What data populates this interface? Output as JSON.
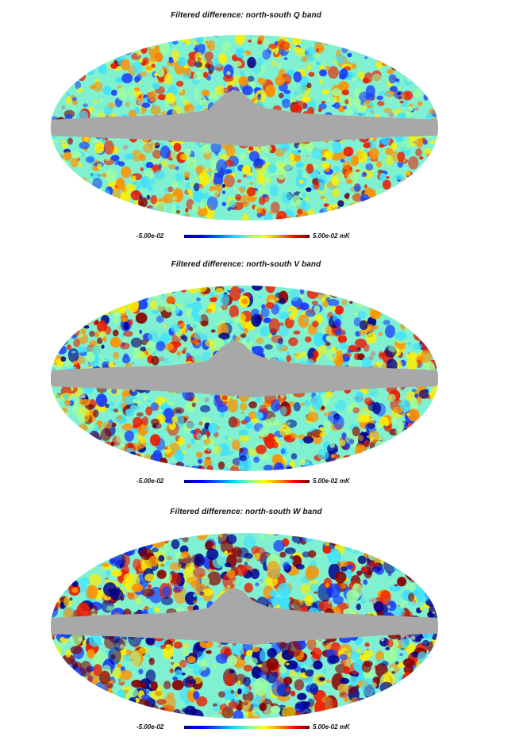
{
  "colors": {
    "mask": "#a8a8a8",
    "dark_blue": "#00008f",
    "blue": "#1a3cff",
    "cyan": "#3fe0ff",
    "green": "#9fffa0",
    "yellow": "#ffee00",
    "orange": "#ff9000",
    "red": "#ee1a00",
    "dark_red": "#8a0000"
  },
  "panels": [
    {
      "title": "Filtered difference: north-south Q band",
      "scale_min": "-5.00e-02",
      "scale_max": "5.00e-02 mK",
      "map_icon": "mollweide-sky-map",
      "noise_amplitude": 0.35
    },
    {
      "title": "Filtered difference: north-south V band",
      "scale_min": "-5.00e-02",
      "scale_max": "5.00e-02 mK",
      "map_icon": "mollweide-sky-map",
      "noise_amplitude": 0.55
    },
    {
      "title": "Filtered difference: north-south W band",
      "scale_min": "-5.00e-02",
      "scale_max": "5.00e-02 mK",
      "map_icon": "mollweide-sky-map",
      "noise_amplitude": 1.0
    }
  ]
}
